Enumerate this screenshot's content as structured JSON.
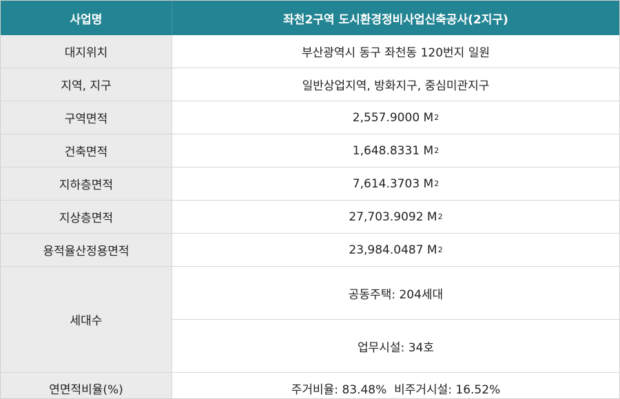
{
  "header": {
    "label": "사업명",
    "value": "좌천2구역 도시환경정비사업신축공사(2지구)"
  },
  "rows": [
    {
      "label": "대지위치",
      "value": "부산광역시 동구 좌천동 120번지 일원"
    },
    {
      "label": "지역, 지구",
      "value": "일반상업지역, 방화지구, 중심미관지구"
    },
    {
      "label": "구역면적",
      "value": "2,557.9000 M",
      "unit_sup": "2"
    },
    {
      "label": "건축면적",
      "value": "1,648.8331 M",
      "unit_sup": "2"
    },
    {
      "label": "지하층면적",
      "value": "7,614.3703 M",
      "unit_sup": "2"
    },
    {
      "label": "지상층면적",
      "value": "27,703.9092 M",
      "unit_sup": "2"
    },
    {
      "label": "용적율산정용면적",
      "value": "23,984.0487 M",
      "unit_sup": "2"
    }
  ],
  "households": {
    "label": "세대수",
    "values": [
      "공동주택: 204세대",
      "업무시설: 34호"
    ]
  },
  "ratio": {
    "label": "연면적비율(%)",
    "value": "주거비율: 83.48%  비주거시설: 16.52%"
  },
  "colors": {
    "header_bg": "#238593",
    "label_bg": "#ebebeb",
    "border": "#d6d6d6"
  }
}
